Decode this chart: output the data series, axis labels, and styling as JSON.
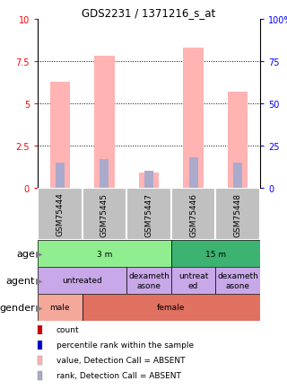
{
  "title": "GDS2231 / 1371216_s_at",
  "samples": [
    "GSM75444",
    "GSM75445",
    "GSM75447",
    "GSM75446",
    "GSM75448"
  ],
  "bar_values": [
    6.3,
    7.8,
    0.9,
    8.3,
    5.7
  ],
  "rank_values": [
    15,
    17,
    10,
    18,
    15
  ],
  "ylim_left": [
    0,
    10
  ],
  "ylim_right": [
    0,
    100
  ],
  "yticks_left": [
    0,
    2.5,
    5.0,
    7.5,
    10
  ],
  "yticks_right": [
    0,
    25,
    50,
    75,
    100
  ],
  "bar_color_pink": "#FFB3B3",
  "bar_color_blue": "#AAAACC",
  "age_segs": [
    [
      "3 m",
      0,
      3
    ],
    [
      "15 m",
      3,
      5
    ]
  ],
  "agent_segs": [
    [
      "untreated",
      0,
      2
    ],
    [
      "dexameth\nasone",
      2,
      3
    ],
    [
      "untreat\ned",
      3,
      4
    ],
    [
      "dexameth\nasone",
      4,
      5
    ]
  ],
  "gender_segs": [
    [
      "male",
      0,
      1
    ],
    [
      "female",
      1,
      5
    ]
  ],
  "age_colors": [
    "#90EE90",
    "#3CB371"
  ],
  "agent_colors": [
    "#C8A8E8",
    "#C8A8E8",
    "#C8A8E8",
    "#C8A8E8"
  ],
  "gender_colors": [
    "#F4A89A",
    "#E07060"
  ],
  "sample_box_color": "#C0C0C0",
  "legend_items": [
    {
      "color": "#CC0000",
      "label": "count"
    },
    {
      "color": "#0000CC",
      "label": "percentile rank within the sample"
    },
    {
      "color": "#FFB3B3",
      "label": "value, Detection Call = ABSENT"
    },
    {
      "color": "#AAAACC",
      "label": "rank, Detection Call = ABSENT"
    }
  ]
}
